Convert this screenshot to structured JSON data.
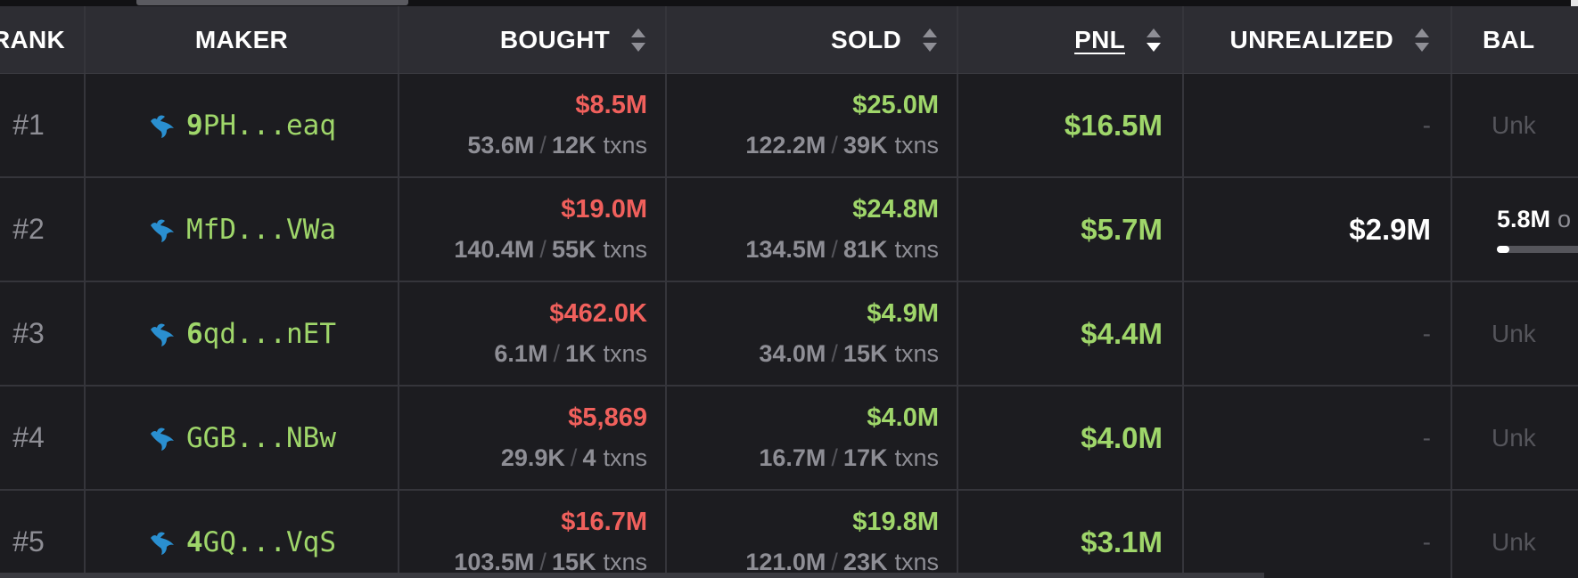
{
  "colors": {
    "background": "#1c1c20",
    "header_bg": "#2d2d33",
    "positive": "#9fd66a",
    "negative": "#f0605c",
    "muted": "#8e8e95",
    "whale_icon": "#2a8fd0"
  },
  "header": {
    "rank": "RANK",
    "maker": "MAKER",
    "bought": "BOUGHT",
    "sold": "SOLD",
    "pnl": "PNL",
    "unrealized": "UNREALIZED",
    "balance": "BAL"
  },
  "rows": [
    {
      "rank": "#1",
      "maker_first": "9",
      "maker_rest": "PH...eaq",
      "bought_usd": "$8.5M",
      "bought_tokens": "53.6M",
      "bought_txns": "12K",
      "sold_usd": "$25.0M",
      "sold_tokens": "122.2M",
      "sold_txns": "39K",
      "pnl": "$16.5M",
      "unrealized": "-",
      "balance": "Unk"
    },
    {
      "rank": "#2",
      "maker_first": "M",
      "maker_rest": "fD...VWa",
      "bought_usd": "$19.0M",
      "bought_tokens": "140.4M",
      "bought_txns": "55K",
      "sold_usd": "$24.8M",
      "sold_tokens": "134.5M",
      "sold_txns": "81K",
      "pnl": "$5.7M",
      "unrealized": "$2.9M",
      "balance_value": "5.8M",
      "balance_of": "o",
      "balance_fraction": 0.07
    },
    {
      "rank": "#3",
      "maker_first": "6",
      "maker_rest": "qd...nET",
      "bought_usd": "$462.0K",
      "bought_tokens": "6.1M",
      "bought_txns": "1K",
      "sold_usd": "$4.9M",
      "sold_tokens": "34.0M",
      "sold_txns": "15K",
      "pnl": "$4.4M",
      "unrealized": "-",
      "balance": "Unk"
    },
    {
      "rank": "#4",
      "maker_first": "G",
      "maker_rest": "GB...NBw",
      "bought_usd": "$5,869",
      "bought_tokens": "29.9K",
      "bought_txns": "4",
      "sold_usd": "$4.0M",
      "sold_tokens": "16.7M",
      "sold_txns": "17K",
      "pnl": "$4.0M",
      "unrealized": "-",
      "balance": "Unk"
    },
    {
      "rank": "#5",
      "maker_first": "4",
      "maker_rest": "GQ...VqS",
      "bought_usd": "$16.7M",
      "bought_tokens": "103.5M",
      "bought_txns": "15K",
      "sold_usd": "$19.8M",
      "sold_tokens": "121.0M",
      "sold_txns": "23K",
      "pnl": "$3.1M",
      "unrealized": "-",
      "balance": "Unk"
    }
  ],
  "labels": {
    "txns": "txns",
    "slash": "/"
  }
}
